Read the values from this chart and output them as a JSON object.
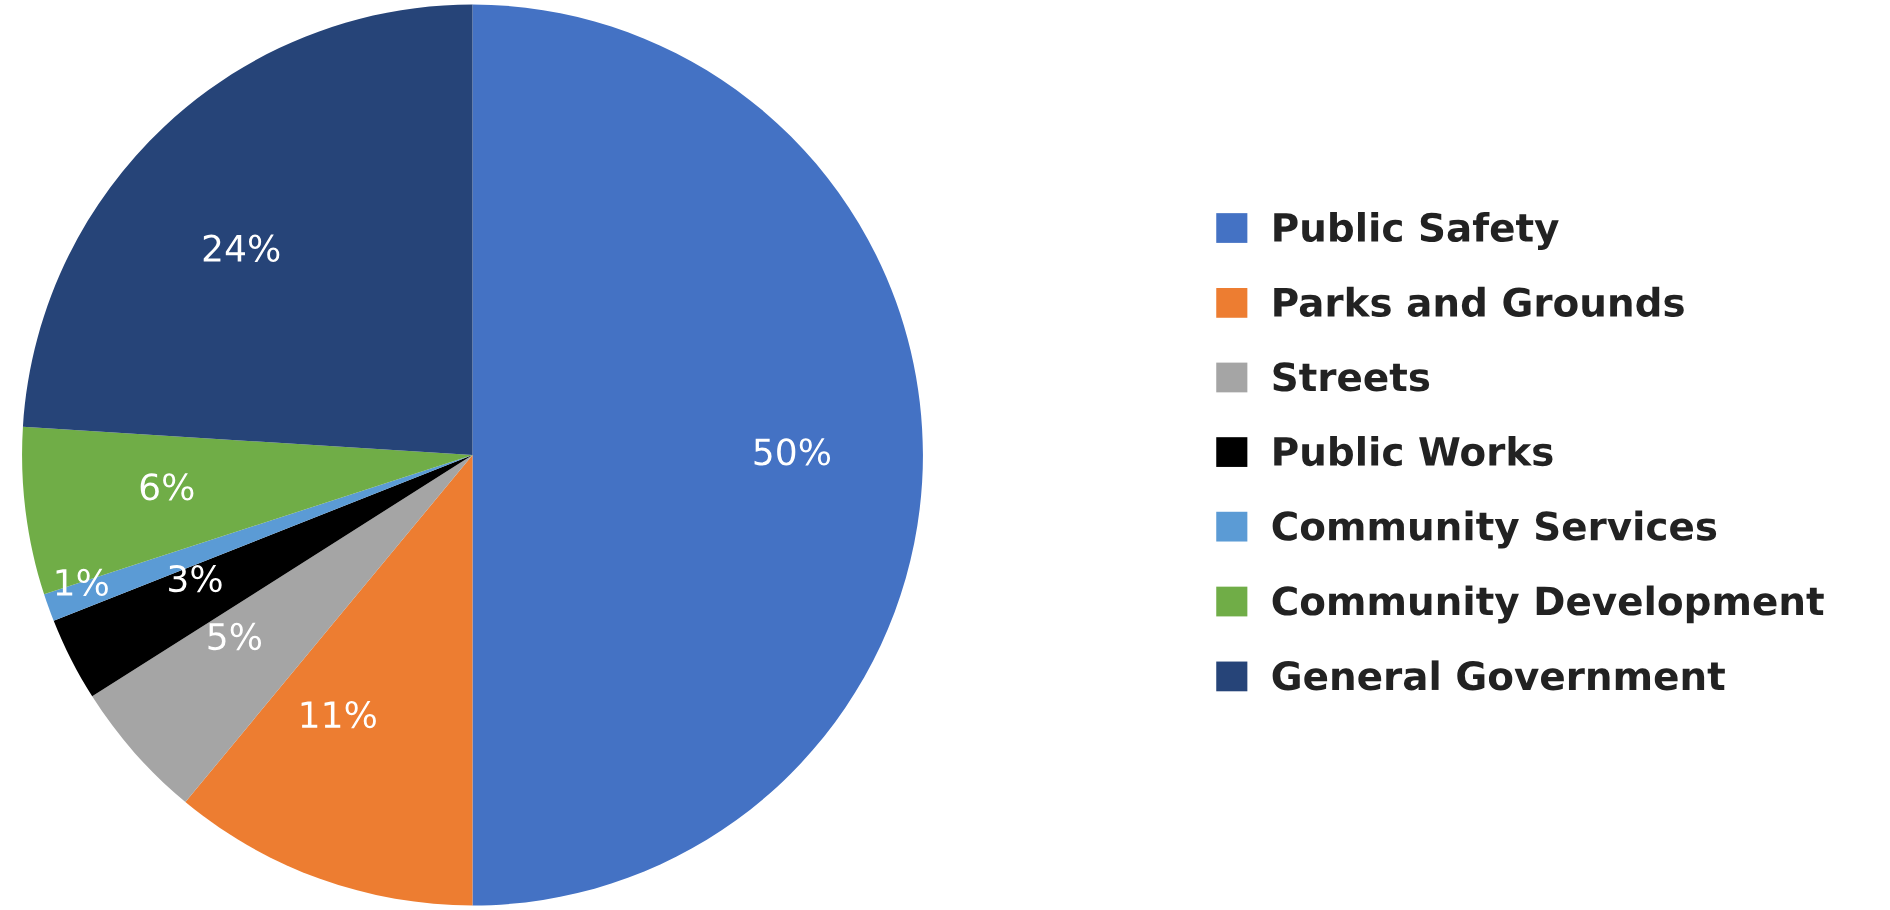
{
  "chart_data": {
    "type": "pie",
    "categories": [
      "Public Safety",
      "Parks and Grounds",
      "Streets",
      "Public Works",
      "Community Services",
      "Community Development",
      "General Government"
    ],
    "values": [
      50,
      11,
      5,
      3,
      1,
      6,
      24
    ],
    "colors": [
      "#4472c4",
      "#ed7d31",
      "#a5a5a5",
      "#000000",
      "#5b9bd5",
      "#70ad47",
      "#264478"
    ],
    "value_labels": [
      "50%",
      "11%",
      "5%",
      "3%",
      "1%",
      "6%",
      "24%"
    ],
    "legend": "right"
  }
}
